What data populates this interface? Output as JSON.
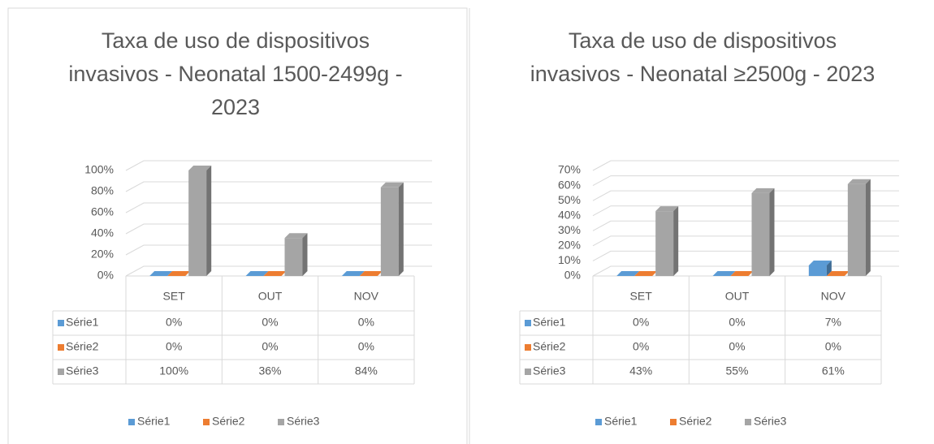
{
  "chart_data": [
    {
      "type": "bar3d",
      "title": "Taxa de uso de dispositivos invasivos - Neonatal 1500-2499g - 2023",
      "categories": [
        "SET",
        "OUT",
        "NOV"
      ],
      "series": [
        {
          "name": "Série1",
          "color": "#5b9bd5",
          "values": [
            0,
            0,
            0
          ],
          "value_labels": [
            "0%",
            "0%",
            "0%"
          ]
        },
        {
          "name": "Série2",
          "color": "#ed7d31",
          "values": [
            0,
            0,
            0
          ],
          "value_labels": [
            "0%",
            "0%",
            "0%"
          ]
        },
        {
          "name": "Série3",
          "color": "#a5a5a5",
          "values": [
            100,
            36,
            84
          ],
          "value_labels": [
            "100%",
            "36%",
            "84%"
          ]
        }
      ],
      "ylim": [
        0,
        100
      ],
      "yticks": [
        {
          "value": 0,
          "label": "0%"
        },
        {
          "value": 20,
          "label": "20%"
        },
        {
          "value": 40,
          "label": "40%"
        },
        {
          "value": 60,
          "label": "60%"
        },
        {
          "value": 80,
          "label": "80%"
        },
        {
          "value": 100,
          "label": "100%"
        }
      ],
      "grid": true,
      "legend": "bottom"
    },
    {
      "type": "bar3d",
      "title": "Taxa de uso de dispositivos invasivos - Neonatal ≥2500g - 2023",
      "categories": [
        "SET",
        "OUT",
        "NOV"
      ],
      "series": [
        {
          "name": "Série1",
          "color": "#5b9bd5",
          "values": [
            0,
            0,
            7
          ],
          "value_labels": [
            "0%",
            "0%",
            "7%"
          ]
        },
        {
          "name": "Série2",
          "color": "#ed7d31",
          "values": [
            0,
            0,
            0
          ],
          "value_labels": [
            "0%",
            "0%",
            "0%"
          ]
        },
        {
          "name": "Série3",
          "color": "#a5a5a5",
          "values": [
            43,
            55,
            61
          ],
          "value_labels": [
            "43%",
            "55%",
            "61%"
          ]
        }
      ],
      "ylim": [
        0,
        70
      ],
      "yticks": [
        {
          "value": 0,
          "label": "0%"
        },
        {
          "value": 10,
          "label": "10%"
        },
        {
          "value": 20,
          "label": "20%"
        },
        {
          "value": 30,
          "label": "30%"
        },
        {
          "value": 40,
          "label": "40%"
        },
        {
          "value": 50,
          "label": "50%"
        },
        {
          "value": 60,
          "label": "60%"
        },
        {
          "value": 70,
          "label": "70%"
        }
      ],
      "grid": true,
      "legend": "bottom"
    }
  ]
}
